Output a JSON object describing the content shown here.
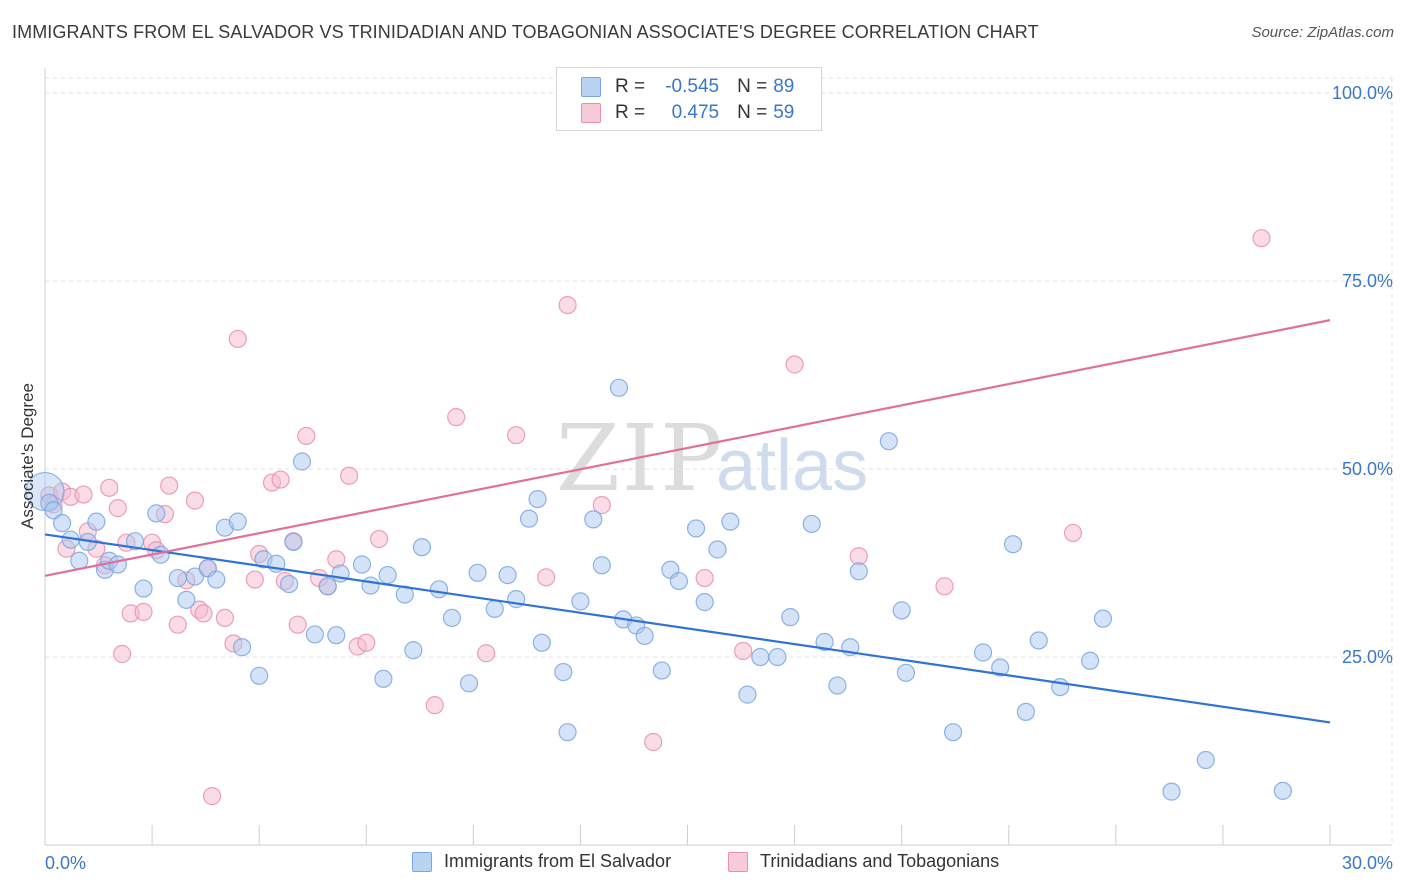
{
  "title": "IMMIGRANTS FROM EL SALVADOR VS TRINIDADIAN AND TOBAGONIAN ASSOCIATE'S DEGREE CORRELATION CHART",
  "source": "Source: ZipAtlas.com",
  "watermark": {
    "zip": "ZIP",
    "atlas": "atlas"
  },
  "legend": {
    "series1": {
      "r_label": "R =",
      "r_value": "-0.545",
      "n_label": "N =",
      "n_value": "89"
    },
    "series2": {
      "r_label": "R =",
      "r_value": "0.475",
      "n_label": "N =",
      "n_value": "59"
    }
  },
  "colors": {
    "blue_fill": "#a9c8f0",
    "blue_stroke": "#7aa6e0",
    "blue_line": "#2f73d4",
    "pink_fill": "#f5b9cd",
    "pink_stroke": "#ea8eae",
    "pink_line": "#e0709a",
    "axis_text": "#3a77c8",
    "grid": "#e2e2e2"
  },
  "chart_data": {
    "type": "scatter",
    "title": "IMMIGRANTS FROM EL SALVADOR VS TRINIDADIAN AND TOBAGONIAN ASSOCIATE'S DEGREE CORRELATION CHART",
    "xlabel": "",
    "ylabel": "Associate's Degree",
    "xlim": [
      0,
      30
    ],
    "ylim": [
      0,
      102
    ],
    "x_tick_labels": [
      "0.0%",
      "30.0%"
    ],
    "y_ticks": [
      25,
      50,
      75,
      100
    ],
    "y_tick_labels": [
      "25.0%",
      "50.0%",
      "75.0%",
      "100.0%"
    ],
    "grid": true,
    "legend_position": "top-center",
    "series": [
      {
        "name": "Immigrants from El Salvador",
        "color": "#a9c8f0",
        "trend": {
          "x": [
            0,
            30
          ],
          "y": [
            41.3,
            16.3
          ]
        },
        "points": [
          [
            0.0,
            47.0
          ],
          [
            0.1,
            45.5
          ],
          [
            0.2,
            44.5
          ],
          [
            0.4,
            42.8
          ],
          [
            0.6,
            40.6
          ],
          [
            0.8,
            37.8
          ],
          [
            1.0,
            40.3
          ],
          [
            1.2,
            43.0
          ],
          [
            1.4,
            36.6
          ],
          [
            1.5,
            37.8
          ],
          [
            1.7,
            37.3
          ],
          [
            2.1,
            40.4
          ],
          [
            2.3,
            34.1
          ],
          [
            2.7,
            38.6
          ],
          [
            2.6,
            44.1
          ],
          [
            3.1,
            35.5
          ],
          [
            3.3,
            32.6
          ],
          [
            3.5,
            35.7
          ],
          [
            3.8,
            36.8
          ],
          [
            4.0,
            35.3
          ],
          [
            4.2,
            42.2
          ],
          [
            4.5,
            43.0
          ],
          [
            4.6,
            26.3
          ],
          [
            5.1,
            38.0
          ],
          [
            5.0,
            22.5
          ],
          [
            5.4,
            37.4
          ],
          [
            5.7,
            34.7
          ],
          [
            5.8,
            40.3
          ],
          [
            6.0,
            51.0
          ],
          [
            6.3,
            28.0
          ],
          [
            6.6,
            34.4
          ],
          [
            6.9,
            36.1
          ],
          [
            6.8,
            27.9
          ],
          [
            7.4,
            37.3
          ],
          [
            7.6,
            34.5
          ],
          [
            7.9,
            22.1
          ],
          [
            8.0,
            35.9
          ],
          [
            8.4,
            33.3
          ],
          [
            8.6,
            25.9
          ],
          [
            8.8,
            39.6
          ],
          [
            9.2,
            34.0
          ],
          [
            9.5,
            30.2
          ],
          [
            9.9,
            21.5
          ],
          [
            10.1,
            36.2
          ],
          [
            10.5,
            31.4
          ],
          [
            10.8,
            35.9
          ],
          [
            11.0,
            32.7
          ],
          [
            11.3,
            43.4
          ],
          [
            11.5,
            46.0
          ],
          [
            11.6,
            26.9
          ],
          [
            12.1,
            23.0
          ],
          [
            12.2,
            15.0
          ],
          [
            12.5,
            32.4
          ],
          [
            12.8,
            43.3
          ],
          [
            13.0,
            37.2
          ],
          [
            13.4,
            60.8
          ],
          [
            13.5,
            30.0
          ],
          [
            13.8,
            29.2
          ],
          [
            14.0,
            27.8
          ],
          [
            14.4,
            23.2
          ],
          [
            14.6,
            36.6
          ],
          [
            14.8,
            35.1
          ],
          [
            15.2,
            42.1
          ],
          [
            15.4,
            32.3
          ],
          [
            15.7,
            39.3
          ],
          [
            16.0,
            43.0
          ],
          [
            16.4,
            20.0
          ],
          [
            16.7,
            25.0
          ],
          [
            17.1,
            25.0
          ],
          [
            17.4,
            30.3
          ],
          [
            17.9,
            42.7
          ],
          [
            18.2,
            27.0
          ],
          [
            18.5,
            21.2
          ],
          [
            18.8,
            26.3
          ],
          [
            19.0,
            36.4
          ],
          [
            19.7,
            53.7
          ],
          [
            20.0,
            31.2
          ],
          [
            20.1,
            22.9
          ],
          [
            21.2,
            15.0
          ],
          [
            21.9,
            25.6
          ],
          [
            22.3,
            23.6
          ],
          [
            22.6,
            40.0
          ],
          [
            22.9,
            17.7
          ],
          [
            23.2,
            27.2
          ],
          [
            23.7,
            21.0
          ],
          [
            24.4,
            24.5
          ],
          [
            24.7,
            30.1
          ],
          [
            26.3,
            7.1
          ],
          [
            27.1,
            11.3
          ],
          [
            28.9,
            7.2
          ]
        ]
      },
      {
        "name": "Trinidadians and Tobagonians",
        "color": "#f5b9cd",
        "trend": {
          "x": [
            0,
            30
          ],
          "y": [
            35.8,
            69.8
          ]
        },
        "points": [
          [
            0.1,
            46.5
          ],
          [
            0.2,
            45.3
          ],
          [
            0.4,
            47.0
          ],
          [
            0.5,
            39.4
          ],
          [
            0.6,
            46.3
          ],
          [
            0.9,
            46.6
          ],
          [
            1.0,
            41.7
          ],
          [
            1.2,
            39.4
          ],
          [
            1.4,
            37.2
          ],
          [
            1.5,
            47.5
          ],
          [
            1.7,
            44.8
          ],
          [
            1.8,
            25.4
          ],
          [
            1.9,
            40.2
          ],
          [
            2.0,
            30.8
          ],
          [
            2.3,
            31.0
          ],
          [
            2.5,
            40.2
          ],
          [
            2.6,
            39.2
          ],
          [
            2.8,
            44.0
          ],
          [
            2.9,
            47.8
          ],
          [
            3.1,
            29.3
          ],
          [
            3.3,
            35.2
          ],
          [
            3.5,
            45.8
          ],
          [
            3.6,
            31.3
          ],
          [
            3.7,
            30.8
          ],
          [
            3.8,
            36.8
          ],
          [
            3.9,
            6.5
          ],
          [
            4.2,
            30.2
          ],
          [
            4.4,
            26.8
          ],
          [
            4.5,
            67.3
          ],
          [
            4.9,
            35.3
          ],
          [
            5.0,
            38.7
          ],
          [
            5.3,
            48.2
          ],
          [
            5.5,
            48.6
          ],
          [
            5.6,
            35.1
          ],
          [
            5.8,
            40.4
          ],
          [
            5.9,
            29.3
          ],
          [
            6.1,
            54.4
          ],
          [
            6.4,
            35.5
          ],
          [
            6.6,
            34.4
          ],
          [
            6.8,
            38.0
          ],
          [
            7.1,
            49.1
          ],
          [
            7.3,
            26.4
          ],
          [
            7.5,
            26.9
          ],
          [
            7.8,
            40.7
          ],
          [
            9.1,
            18.6
          ],
          [
            9.6,
            56.9
          ],
          [
            10.3,
            25.5
          ],
          [
            11.0,
            54.5
          ],
          [
            11.7,
            35.6
          ],
          [
            12.2,
            71.8
          ],
          [
            13.0,
            45.2
          ],
          [
            14.2,
            13.7
          ],
          [
            15.4,
            35.5
          ],
          [
            16.3,
            25.8
          ],
          [
            17.5,
            63.9
          ],
          [
            19.0,
            38.4
          ],
          [
            21.0,
            34.4
          ],
          [
            24.0,
            41.5
          ],
          [
            28.4,
            80.7
          ]
        ]
      }
    ]
  },
  "bottom_legend": {
    "series1": "Immigrants from El Salvador",
    "series2": "Trinidadians and Tobagonians"
  }
}
